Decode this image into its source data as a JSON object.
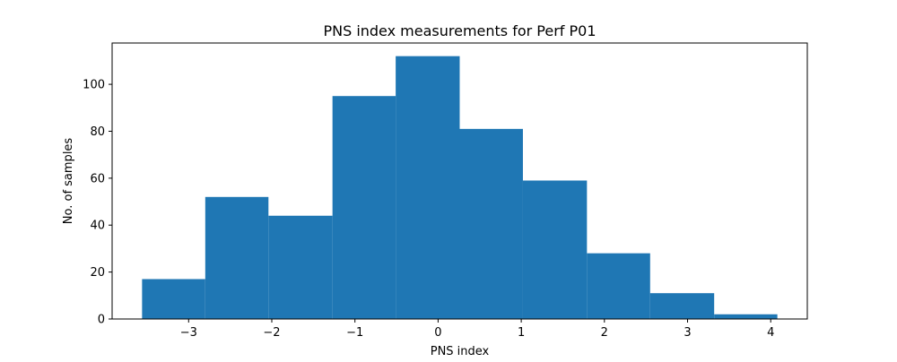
{
  "chart_data": {
    "type": "bar",
    "title": "PNS index measurements for Perf P01",
    "xlabel": "PNS index",
    "ylabel": "No. of samples",
    "bins": [
      {
        "x0": -3.56,
        "x1": -2.8,
        "count": 17
      },
      {
        "x0": -2.8,
        "x1": -2.04,
        "count": 52
      },
      {
        "x0": -2.04,
        "x1": -1.27,
        "count": 44
      },
      {
        "x0": -1.27,
        "x1": -0.51,
        "count": 95
      },
      {
        "x0": -0.51,
        "x1": 0.26,
        "count": 112
      },
      {
        "x0": 0.26,
        "x1": 1.02,
        "count": 81
      },
      {
        "x0": 1.02,
        "x1": 1.79,
        "count": 59
      },
      {
        "x0": 1.79,
        "x1": 2.55,
        "count": 28
      },
      {
        "x0": 2.55,
        "x1": 3.32,
        "count": 11
      },
      {
        "x0": 3.32,
        "x1": 4.08,
        "count": 2
      }
    ],
    "xlim": [
      -3.92,
      4.44
    ],
    "ylim": [
      0,
      117.6
    ],
    "xticks": [
      -3,
      -2,
      -1,
      0,
      1,
      2,
      3,
      4
    ],
    "xtick_labels": [
      "−3",
      "−2",
      "−1",
      "0",
      "1",
      "2",
      "3",
      "4"
    ],
    "yticks": [
      0,
      20,
      40,
      60,
      80,
      100
    ],
    "ytick_labels": [
      "0",
      "20",
      "40",
      "60",
      "80",
      "100"
    ],
    "bar_color": "#1f77b4",
    "grid": false,
    "legend": false
  }
}
